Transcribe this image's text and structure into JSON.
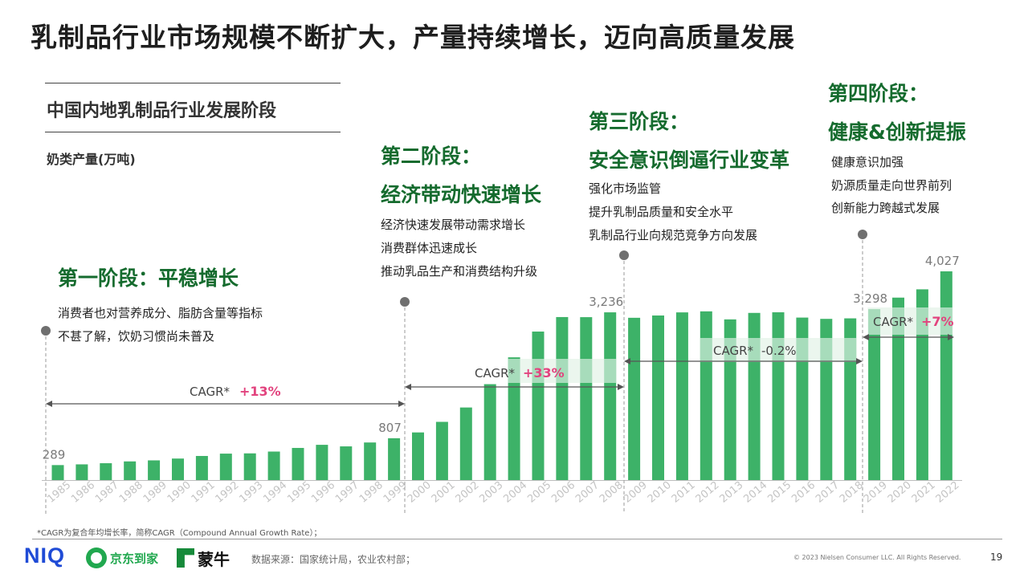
{
  "title": "乳制品行业市场规模不断扩大，产量持续增长，迈向高质量发展",
  "section_title": "中国内地乳制品行业发展阶段",
  "unit_label": "奶类产量(万吨)",
  "stages": [
    {
      "title1": "第一阶段：平稳增长",
      "title2": "",
      "desc": [
        "消费者也对营养成分、脂肪含量等指标",
        "不甚了解，饮奶习惯尚未普及"
      ]
    },
    {
      "title1": "第二阶段：",
      "title2": "经济带动快速增长",
      "desc": [
        "经济快速发展带动需求增长",
        "消费群体迅速成长",
        "推动乳品生产和消费结构升级"
      ]
    },
    {
      "title1": "第三阶段：",
      "title2": "安全意识倒逼行业变革",
      "desc": [
        "强化市场监管",
        "提升乳制品质量和安全水平",
        "乳制品行业向规范竞争方向发展"
      ]
    },
    {
      "title1": "第四阶段：",
      "title2": "健康&创新提振",
      "desc": [
        "健康意识加强",
        "奶源质量走向世界前列",
        "创新能力跨越式发展"
      ]
    }
  ],
  "cagr": [
    {
      "label": "CAGR*",
      "value": "+13%"
    },
    {
      "label": "CAGR*",
      "value": "+33%"
    },
    {
      "label": "CAGR*",
      "value": "-0.2%"
    },
    {
      "label": "CAGR*",
      "value": "+7%"
    }
  ],
  "footnote": "*CAGR为复合年均增长率，简称CAGR（Compound Annual Growth Rate）；",
  "footer": {
    "niq": "NIQ",
    "jd": "京东到家",
    "mengniu": "蒙牛",
    "source": "数据来源：国家统计局，农业农村部；",
    "copyright": "© 2023 Nielsen Consumer LLC. All Rights Reserved.",
    "page": "19"
  },
  "colors": {
    "bar": "#3DB268",
    "highlight": "#D2EBDA",
    "stage_title": "#156B2E",
    "cagr_value": "#E2437E"
  },
  "chart_data": {
    "type": "bar",
    "title": "",
    "xlabel": "",
    "ylabel": "奶类产量(万吨)",
    "categories": [
      "1985",
      "1986",
      "1987",
      "1988",
      "1989",
      "1990",
      "1991",
      "1992",
      "1993",
      "1994",
      "1995",
      "1996",
      "1997",
      "1998",
      "1999",
      "2000",
      "2001",
      "2002",
      "2003",
      "2004",
      "2005",
      "2006",
      "2007",
      "2008",
      "2009",
      "2010",
      "2011",
      "2012",
      "2013",
      "2014",
      "2015",
      "2016",
      "2017",
      "2018",
      "2019",
      "2020",
      "2021",
      "2022"
    ],
    "values": [
      289,
      303,
      325,
      360,
      380,
      415,
      465,
      510,
      515,
      550,
      620,
      680,
      650,
      725,
      807,
      919,
      1123,
      1400,
      1850,
      2368,
      2865,
      3145,
      3143,
      3236,
      3131,
      3175,
      3235,
      3255,
      3100,
      3225,
      3237,
      3135,
      3110,
      3120,
      3298,
      3520,
      3680,
      4027
    ],
    "data_labels": {
      "1985": "289",
      "1999": "807",
      "2008": "3,236",
      "2019": "3,298",
      "2022": "4,027"
    },
    "ylim": [
      0,
      4500
    ],
    "grid": false,
    "legend": "none"
  }
}
